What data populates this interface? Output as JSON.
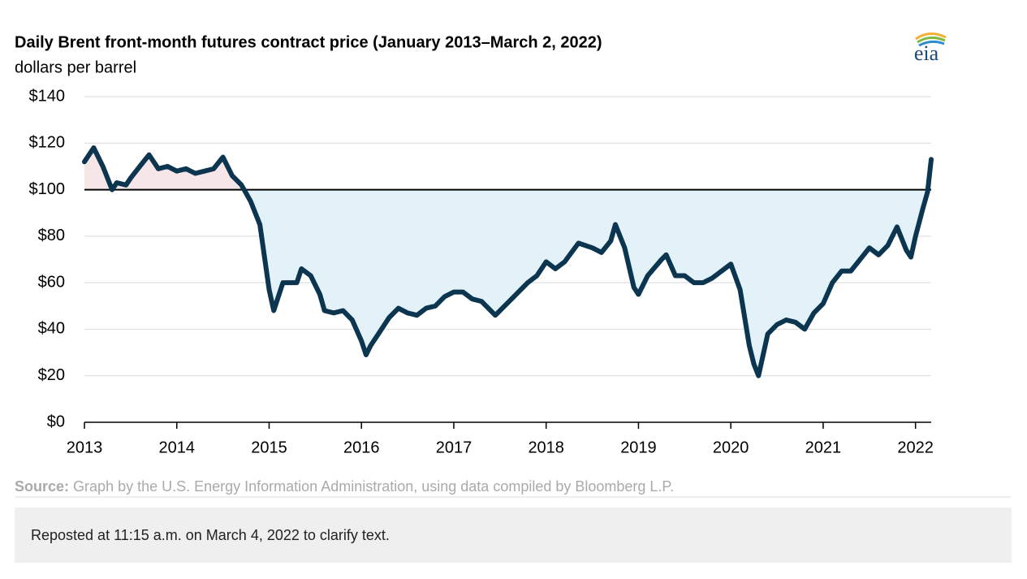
{
  "chart_data": {
    "type": "line",
    "title": "Daily Brent front-month futures contract price (January 2013–March 2, 2022)",
    "subtitle": "dollars per barrel",
    "logo": "eia",
    "source_label": "Source:",
    "source": "Graph by the U.S. Energy Information Administration, using data compiled by Bloomberg L.P.",
    "note": "Reposted at 11:15 a.m. on March 4, 2022 to clarify text.",
    "xlim": [
      2013,
      2022.17
    ],
    "xticks": [
      2013,
      2014,
      2015,
      2016,
      2017,
      2018,
      2019,
      2020,
      2021,
      2022
    ],
    "ylim": [
      0,
      140
    ],
    "yticks": [
      {
        "value": 0,
        "label": "$0"
      },
      {
        "value": 20,
        "label": "$20"
      },
      {
        "value": 40,
        "label": "$40"
      },
      {
        "value": 60,
        "label": "$60"
      },
      {
        "value": 80,
        "label": "$80"
      },
      {
        "value": 100,
        "label": "$100"
      },
      {
        "value": 120,
        "label": "$120"
      },
      {
        "value": 140,
        "label": "$140"
      }
    ],
    "grid": true,
    "reference_line": 100,
    "fill_above_color": "#f6e6e8",
    "fill_below_color": "#e3f1f9",
    "series": [
      {
        "name": "Brent",
        "color": "#0c3550",
        "x": [
          2013.0,
          2013.1,
          2013.2,
          2013.3,
          2013.35,
          2013.45,
          2013.5,
          2013.6,
          2013.7,
          2013.8,
          2013.9,
          2014.0,
          2014.1,
          2014.2,
          2014.3,
          2014.4,
          2014.5,
          2014.6,
          2014.7,
          2014.8,
          2014.9,
          2015.0,
          2015.05,
          2015.15,
          2015.3,
          2015.35,
          2015.45,
          2015.55,
          2015.6,
          2015.7,
          2015.8,
          2015.9,
          2016.0,
          2016.05,
          2016.1,
          2016.2,
          2016.3,
          2016.4,
          2016.5,
          2016.6,
          2016.7,
          2016.8,
          2016.9,
          2017.0,
          2017.1,
          2017.2,
          2017.3,
          2017.45,
          2017.6,
          2017.7,
          2017.8,
          2017.9,
          2018.0,
          2018.1,
          2018.2,
          2018.35,
          2018.5,
          2018.6,
          2018.7,
          2018.75,
          2018.85,
          2018.95,
          2019.0,
          2019.1,
          2019.25,
          2019.3,
          2019.4,
          2019.5,
          2019.6,
          2019.7,
          2019.8,
          2019.9,
          2020.0,
          2020.1,
          2020.2,
          2020.25,
          2020.3,
          2020.4,
          2020.5,
          2020.6,
          2020.7,
          2020.8,
          2020.9,
          2021.0,
          2021.1,
          2021.2,
          2021.3,
          2021.4,
          2021.5,
          2021.6,
          2021.7,
          2021.8,
          2021.9,
          2021.95,
          2022.0,
          2022.08,
          2022.13,
          2022.17
        ],
        "values": [
          112,
          118,
          110,
          100,
          103,
          102,
          105,
          110,
          115,
          109,
          110,
          108,
          109,
          107,
          108,
          109,
          114,
          106,
          102,
          95,
          85,
          57,
          48,
          60,
          60,
          66,
          63,
          55,
          48,
          47,
          48,
          44,
          35,
          29,
          33,
          39,
          45,
          49,
          47,
          46,
          49,
          50,
          54,
          56,
          56,
          53,
          52,
          46,
          52,
          56,
          60,
          63,
          69,
          66,
          69,
          77,
          75,
          73,
          78,
          85,
          75,
          58,
          55,
          63,
          70,
          72,
          63,
          63,
          60,
          60,
          62,
          65,
          68,
          57,
          33,
          25,
          20,
          38,
          42,
          44,
          43,
          40,
          47,
          51,
          60,
          65,
          65,
          70,
          75,
          72,
          76,
          84,
          74,
          71,
          80,
          92,
          99,
          113
        ]
      }
    ]
  }
}
